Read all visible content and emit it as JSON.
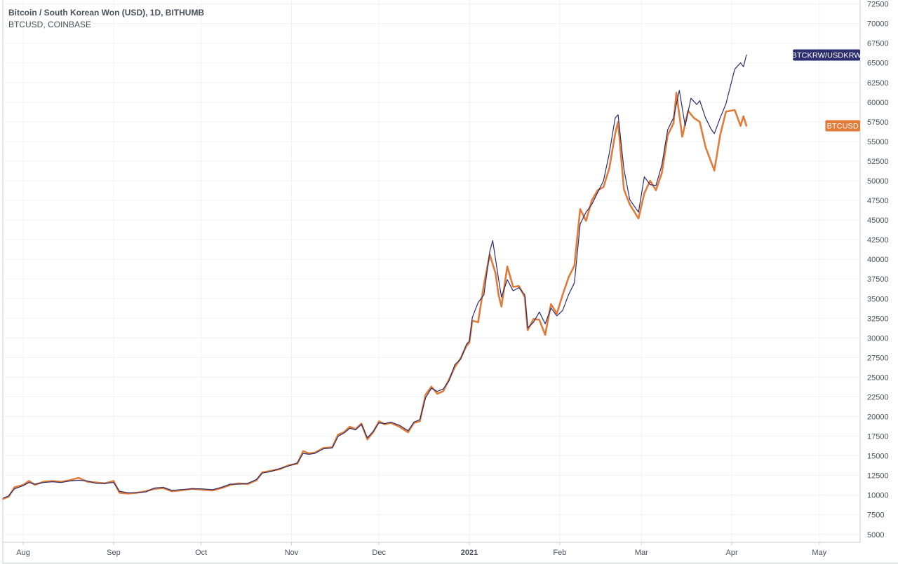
{
  "legend": {
    "title": "Bitcoin / South Korean Won (USD), 1D, BITHUMB",
    "subtitle": "BTCUSD, COINBASE"
  },
  "colors": {
    "btckrw": "#2b2d6e",
    "btcusd": "#e07b39",
    "grid": "#f0f2f5",
    "axis": "#c9ccd3",
    "text": "#4a4f5c"
  },
  "chart_data": {
    "type": "line",
    "title": "Bitcoin / South Korean Won (USD), 1D, BITHUMB",
    "subtitle": "BTCUSD, COINBASE",
    "xlabel": "",
    "ylabel": "",
    "xlim": [
      "2020-07-25",
      "2021-05-15"
    ],
    "ylim": [
      4000,
      73000
    ],
    "grid": true,
    "x_ticks": [
      {
        "date": "2020-08-01",
        "label": "Aug",
        "bold": false
      },
      {
        "date": "2020-09-01",
        "label": "Sep",
        "bold": false
      },
      {
        "date": "2020-10-01",
        "label": "Oct",
        "bold": false
      },
      {
        "date": "2020-11-01",
        "label": "Nov",
        "bold": false
      },
      {
        "date": "2020-12-01",
        "label": "Dec",
        "bold": false
      },
      {
        "date": "2021-01-01",
        "label": "2021",
        "bold": true
      },
      {
        "date": "2021-02-01",
        "label": "Feb",
        "bold": false
      },
      {
        "date": "2021-03-01",
        "label": "Mar",
        "bold": false
      },
      {
        "date": "2021-04-01",
        "label": "Apr",
        "bold": false
      },
      {
        "date": "2021-05-01",
        "label": "May",
        "bold": false
      }
    ],
    "y_ticks": [
      5000,
      7500,
      10000,
      12500,
      15000,
      17500,
      20000,
      22500,
      25000,
      27500,
      30000,
      32500,
      35000,
      37500,
      40000,
      42500,
      45000,
      47500,
      50000,
      52500,
      55000,
      57500,
      60000,
      62500,
      65000,
      67500,
      70000,
      72500
    ],
    "series": [
      {
        "name": "BTCUSD",
        "color": "#e07b39",
        "last_label": "BTCUSD",
        "points": [
          [
            "2020-07-25",
            9500
          ],
          [
            "2020-07-27",
            9800
          ],
          [
            "2020-07-29",
            11000
          ],
          [
            "2020-08-01",
            11300
          ],
          [
            "2020-08-03",
            11800
          ],
          [
            "2020-08-05",
            11300
          ],
          [
            "2020-08-08",
            11700
          ],
          [
            "2020-08-11",
            11800
          ],
          [
            "2020-08-14",
            11700
          ],
          [
            "2020-08-17",
            11900
          ],
          [
            "2020-08-20",
            12200
          ],
          [
            "2020-08-23",
            11700
          ],
          [
            "2020-08-26",
            11600
          ],
          [
            "2020-08-29",
            11500
          ],
          [
            "2020-09-01",
            11800
          ],
          [
            "2020-09-03",
            10300
          ],
          [
            "2020-09-06",
            10200
          ],
          [
            "2020-09-09",
            10300
          ],
          [
            "2020-09-12",
            10500
          ],
          [
            "2020-09-15",
            10800
          ],
          [
            "2020-09-18",
            10900
          ],
          [
            "2020-09-21",
            10500
          ],
          [
            "2020-09-24",
            10600
          ],
          [
            "2020-09-28",
            10800
          ],
          [
            "2020-10-01",
            10700
          ],
          [
            "2020-10-05",
            10600
          ],
          [
            "2020-10-08",
            10900
          ],
          [
            "2020-10-11",
            11300
          ],
          [
            "2020-10-14",
            11500
          ],
          [
            "2020-10-17",
            11400
          ],
          [
            "2020-10-20",
            11900
          ],
          [
            "2020-10-22",
            12900
          ],
          [
            "2020-10-25",
            13100
          ],
          [
            "2020-10-28",
            13300
          ],
          [
            "2020-10-31",
            13800
          ],
          [
            "2020-11-03",
            14000
          ],
          [
            "2020-11-05",
            15600
          ],
          [
            "2020-11-07",
            15300
          ],
          [
            "2020-11-09",
            15400
          ],
          [
            "2020-11-12",
            16000
          ],
          [
            "2020-11-15",
            16100
          ],
          [
            "2020-11-17",
            17700
          ],
          [
            "2020-11-19",
            18000
          ],
          [
            "2020-11-21",
            18700
          ],
          [
            "2020-11-23",
            18400
          ],
          [
            "2020-11-25",
            19100
          ],
          [
            "2020-11-27",
            17100
          ],
          [
            "2020-11-29",
            18000
          ],
          [
            "2020-12-01",
            19400
          ],
          [
            "2020-12-03",
            19000
          ],
          [
            "2020-12-05",
            19200
          ],
          [
            "2020-12-08",
            18700
          ],
          [
            "2020-12-11",
            18000
          ],
          [
            "2020-12-13",
            19200
          ],
          [
            "2020-12-15",
            19400
          ],
          [
            "2020-12-17",
            22800
          ],
          [
            "2020-12-19",
            23800
          ],
          [
            "2020-12-21",
            22900
          ],
          [
            "2020-12-23",
            23200
          ],
          [
            "2020-12-25",
            24700
          ],
          [
            "2020-12-27",
            26300
          ],
          [
            "2020-12-29",
            27400
          ],
          [
            "2020-12-31",
            29000
          ],
          [
            "2021-01-01",
            29400
          ],
          [
            "2021-01-02",
            32200
          ],
          [
            "2021-01-04",
            32000
          ],
          [
            "2021-01-06",
            36800
          ],
          [
            "2021-01-08",
            40600
          ],
          [
            "2021-01-10",
            38200
          ],
          [
            "2021-01-11",
            35500
          ],
          [
            "2021-01-12",
            34000
          ],
          [
            "2021-01-14",
            39100
          ],
          [
            "2021-01-16",
            36500
          ],
          [
            "2021-01-18",
            36600
          ],
          [
            "2021-01-20",
            35200
          ],
          [
            "2021-01-21",
            31000
          ],
          [
            "2021-01-23",
            32400
          ],
          [
            "2021-01-25",
            32300
          ],
          [
            "2021-01-27",
            30400
          ],
          [
            "2021-01-29",
            34300
          ],
          [
            "2021-01-31",
            33100
          ],
          [
            "2021-02-02",
            35500
          ],
          [
            "2021-02-04",
            37700
          ],
          [
            "2021-02-06",
            39200
          ],
          [
            "2021-02-08",
            46400
          ],
          [
            "2021-02-10",
            44900
          ],
          [
            "2021-02-12",
            47500
          ],
          [
            "2021-02-14",
            48800
          ],
          [
            "2021-02-16",
            49200
          ],
          [
            "2021-02-18",
            51600
          ],
          [
            "2021-02-20",
            56000
          ],
          [
            "2021-02-21",
            57500
          ],
          [
            "2021-02-23",
            48900
          ],
          [
            "2021-02-25",
            47000
          ],
          [
            "2021-02-28",
            45200
          ],
          [
            "2021-03-02",
            48400
          ],
          [
            "2021-03-04",
            50000
          ],
          [
            "2021-03-06",
            48800
          ],
          [
            "2021-03-08",
            51000
          ],
          [
            "2021-03-10",
            55800
          ],
          [
            "2021-03-12",
            57300
          ],
          [
            "2021-03-13",
            61200
          ],
          [
            "2021-03-15",
            55600
          ],
          [
            "2021-03-17",
            58900
          ],
          [
            "2021-03-19",
            58000
          ],
          [
            "2021-03-21",
            57500
          ],
          [
            "2021-03-23",
            54300
          ],
          [
            "2021-03-25",
            52300
          ],
          [
            "2021-03-26",
            51300
          ],
          [
            "2021-03-28",
            55800
          ],
          [
            "2021-03-30",
            58800
          ],
          [
            "2021-04-02",
            59000
          ],
          [
            "2021-04-04",
            57000
          ],
          [
            "2021-04-05",
            58200
          ],
          [
            "2021-04-06",
            57000
          ]
        ]
      },
      {
        "name": "BTCKRW/USDKRW",
        "color": "#2b2d6e",
        "last_label": "BTCKRW/USDKRW",
        "points": [
          [
            "2020-07-25",
            9600
          ],
          [
            "2020-07-27",
            9900
          ],
          [
            "2020-07-29",
            10800
          ],
          [
            "2020-08-01",
            11200
          ],
          [
            "2020-08-03",
            11600
          ],
          [
            "2020-08-05",
            11400
          ],
          [
            "2020-08-08",
            11600
          ],
          [
            "2020-08-11",
            11700
          ],
          [
            "2020-08-14",
            11600
          ],
          [
            "2020-08-17",
            11800
          ],
          [
            "2020-08-20",
            11900
          ],
          [
            "2020-08-23",
            11800
          ],
          [
            "2020-08-26",
            11500
          ],
          [
            "2020-08-29",
            11500
          ],
          [
            "2020-09-01",
            11600
          ],
          [
            "2020-09-03",
            10500
          ],
          [
            "2020-09-06",
            10300
          ],
          [
            "2020-09-09",
            10300
          ],
          [
            "2020-09-12",
            10400
          ],
          [
            "2020-09-15",
            10900
          ],
          [
            "2020-09-18",
            11000
          ],
          [
            "2020-09-21",
            10600
          ],
          [
            "2020-09-24",
            10700
          ],
          [
            "2020-09-28",
            10800
          ],
          [
            "2020-10-01",
            10800
          ],
          [
            "2020-10-05",
            10700
          ],
          [
            "2020-10-08",
            11000
          ],
          [
            "2020-10-11",
            11400
          ],
          [
            "2020-10-14",
            11400
          ],
          [
            "2020-10-17",
            11500
          ],
          [
            "2020-10-20",
            12000
          ],
          [
            "2020-10-22",
            12800
          ],
          [
            "2020-10-25",
            13000
          ],
          [
            "2020-10-28",
            13400
          ],
          [
            "2020-10-31",
            13700
          ],
          [
            "2020-11-03",
            14100
          ],
          [
            "2020-11-05",
            15300
          ],
          [
            "2020-11-07",
            15200
          ],
          [
            "2020-11-09",
            15300
          ],
          [
            "2020-11-12",
            15900
          ],
          [
            "2020-11-15",
            16000
          ],
          [
            "2020-11-17",
            17500
          ],
          [
            "2020-11-19",
            17900
          ],
          [
            "2020-11-21",
            18500
          ],
          [
            "2020-11-23",
            18300
          ],
          [
            "2020-11-25",
            19000
          ],
          [
            "2020-11-27",
            17300
          ],
          [
            "2020-11-29",
            18100
          ],
          [
            "2020-12-01",
            19200
          ],
          [
            "2020-12-03",
            19100
          ],
          [
            "2020-12-05",
            19300
          ],
          [
            "2020-12-08",
            18900
          ],
          [
            "2020-12-11",
            18200
          ],
          [
            "2020-12-13",
            19300
          ],
          [
            "2020-12-15",
            19600
          ],
          [
            "2020-12-17",
            22400
          ],
          [
            "2020-12-19",
            23600
          ],
          [
            "2020-12-21",
            23200
          ],
          [
            "2020-12-23",
            23500
          ],
          [
            "2020-12-25",
            24500
          ],
          [
            "2020-12-27",
            26600
          ],
          [
            "2020-12-29",
            27300
          ],
          [
            "2020-12-31",
            29200
          ],
          [
            "2021-01-01",
            29600
          ],
          [
            "2021-01-02",
            32600
          ],
          [
            "2021-01-04",
            34500
          ],
          [
            "2021-01-06",
            35500
          ],
          [
            "2021-01-08",
            41000
          ],
          [
            "2021-01-09",
            42400
          ],
          [
            "2021-01-11",
            37500
          ],
          [
            "2021-01-12",
            35200
          ],
          [
            "2021-01-14",
            37400
          ],
          [
            "2021-01-16",
            36000
          ],
          [
            "2021-01-18",
            36400
          ],
          [
            "2021-01-20",
            35500
          ],
          [
            "2021-01-21",
            31300
          ],
          [
            "2021-01-23",
            32000
          ],
          [
            "2021-01-25",
            33300
          ],
          [
            "2021-01-27",
            31800
          ],
          [
            "2021-01-29",
            33800
          ],
          [
            "2021-01-31",
            32800
          ],
          [
            "2021-02-02",
            33500
          ],
          [
            "2021-02-04",
            35500
          ],
          [
            "2021-02-06",
            37000
          ],
          [
            "2021-02-08",
            44500
          ],
          [
            "2021-02-10",
            46000
          ],
          [
            "2021-02-12",
            47000
          ],
          [
            "2021-02-14",
            48500
          ],
          [
            "2021-02-16",
            50000
          ],
          [
            "2021-02-18",
            53500
          ],
          [
            "2021-02-20",
            58000
          ],
          [
            "2021-02-21",
            58400
          ],
          [
            "2021-02-23",
            51500
          ],
          [
            "2021-02-25",
            47600
          ],
          [
            "2021-02-28",
            46000
          ],
          [
            "2021-03-02",
            50500
          ],
          [
            "2021-03-04",
            49500
          ],
          [
            "2021-03-06",
            49400
          ],
          [
            "2021-03-08",
            52000
          ],
          [
            "2021-03-10",
            56500
          ],
          [
            "2021-03-12",
            58000
          ],
          [
            "2021-03-14",
            61500
          ],
          [
            "2021-03-16",
            57000
          ],
          [
            "2021-03-18",
            60500
          ],
          [
            "2021-03-20",
            59700
          ],
          [
            "2021-03-21",
            60200
          ],
          [
            "2021-03-23",
            58000
          ],
          [
            "2021-03-25",
            56500
          ],
          [
            "2021-03-26",
            56000
          ],
          [
            "2021-03-28",
            58000
          ],
          [
            "2021-03-30",
            59800
          ],
          [
            "2021-04-02",
            64200
          ],
          [
            "2021-04-04",
            65000
          ],
          [
            "2021-04-05",
            64500
          ],
          [
            "2021-04-06",
            66000
          ]
        ]
      }
    ]
  }
}
